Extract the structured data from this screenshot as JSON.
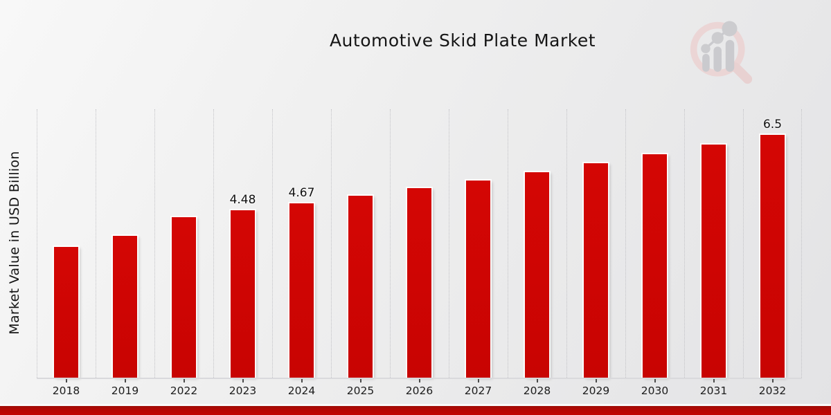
{
  "title": "Automotive Skid Plate Market",
  "y_axis_label": "Market Value in USD Billion",
  "logo": {
    "name": "market-research-magnifier-logo",
    "ring_color": "#ecd3d3",
    "glyph_color": "#c7c7cb"
  },
  "colors": {
    "bar": "#cb0504",
    "gridline": "#c2c2c6",
    "accent_strip_dark": "#9c0d08",
    "accent_strip_bright": "#c30401",
    "background_light": "#f8f8f8",
    "background_dark": "#e3e3e5"
  },
  "chart_data": {
    "type": "bar",
    "title": "Automotive Skid Plate Market",
    "xlabel": "",
    "ylabel": "Market Value in USD Billion",
    "categories": [
      "2018",
      "2019",
      "2022",
      "2023",
      "2024",
      "2025",
      "2026",
      "2027",
      "2028",
      "2029",
      "2030",
      "2031",
      "2032"
    ],
    "values": [
      3.5,
      3.8,
      4.3,
      4.48,
      4.67,
      4.87,
      5.07,
      5.29,
      5.51,
      5.75,
      5.99,
      6.25,
      6.5
    ],
    "bar_labels": [
      "",
      "",
      "",
      "4.48",
      "4.67",
      "",
      "",
      "",
      "",
      "",
      "",
      "",
      "6.5"
    ],
    "unit": "USD Billion",
    "ylim": [
      0,
      7.19
    ],
    "grid": "vertical-dotted",
    "legend": "none",
    "bar_color": "#cb0504"
  }
}
